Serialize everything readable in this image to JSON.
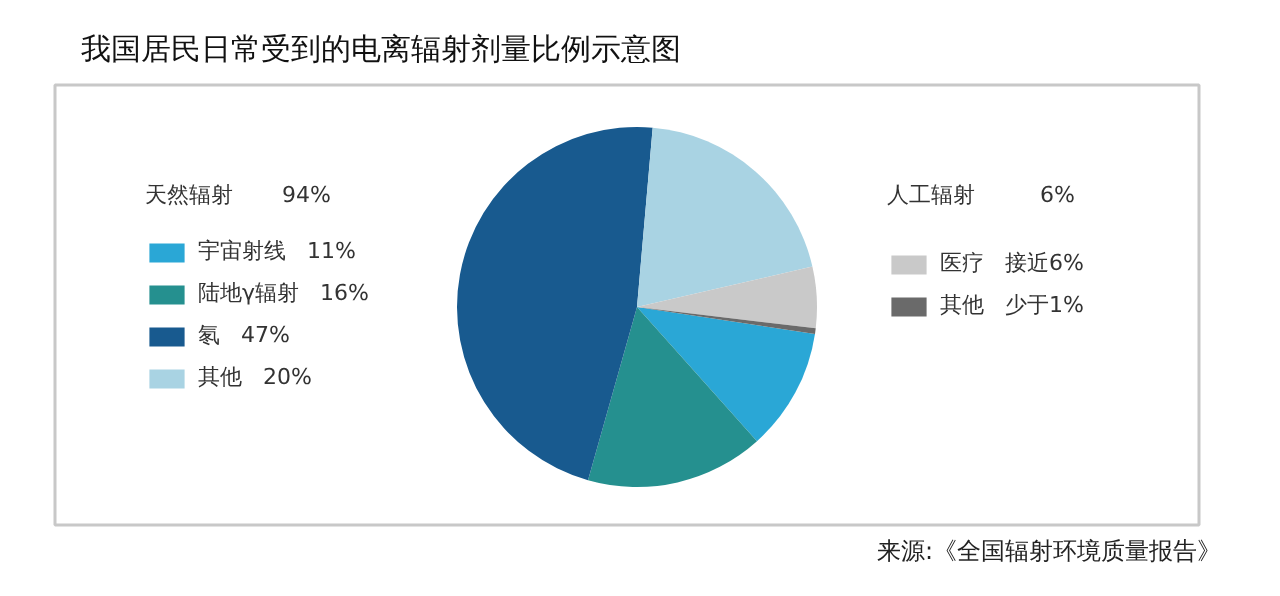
{
  "chart_data": {
    "type": "pie",
    "title": "我国居民日常受到的电离辐射剂量比例示意图",
    "categories": [
      "宇宙射线",
      "陆地γ辐射",
      "氡",
      "其他",
      "医疗",
      "其他"
    ],
    "values": [
      11,
      16,
      47,
      20,
      5.5,
      0.5
    ],
    "value_labels": [
      "11%",
      "16%",
      "47%",
      "20%",
      "接近6%",
      "少于1%"
    ],
    "colors": [
      "#2aa7d6",
      "#25908f",
      "#185a8f",
      "#a9d3e3",
      "#c9c9c9",
      "#6a6a6a"
    ],
    "legend": "left",
    "annotations": [
      "天然辐射",
      "94%",
      "人工辐射",
      "6%",
      "来源:《全国辐射环境质量报告》"
    ]
  }
}
